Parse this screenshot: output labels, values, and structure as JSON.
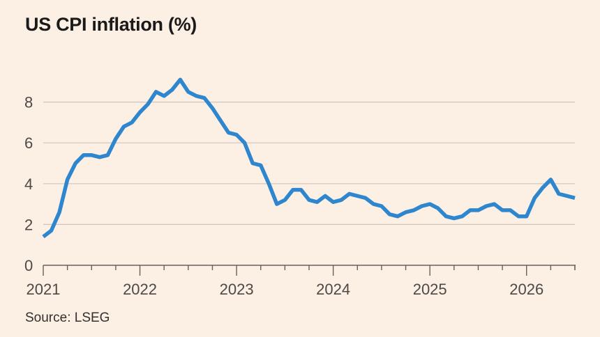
{
  "title": "US CPI inflation (%)",
  "source": "Source: LSEG",
  "colors": {
    "background": "#FCEFE4",
    "line": "#2E86CF",
    "grid": "#CFC5BD",
    "axis": "#66605C",
    "text": "#4d4a46"
  },
  "chart_data": {
    "type": "line",
    "title": "US CPI inflation (%)",
    "xlabel": "",
    "ylabel": "",
    "x_ticks": [
      "2021",
      "2022",
      "2023",
      "2024",
      "2025",
      "2026"
    ],
    "y_ticks": [
      0,
      2,
      4,
      6,
      8
    ],
    "ylim": [
      0,
      9.5
    ],
    "xlim": [
      "2021-01",
      "2026-07"
    ],
    "grid": "horizontal",
    "series": [
      {
        "x": [
          "2021-01",
          "2021-02",
          "2021-03",
          "2021-04",
          "2021-05",
          "2021-06",
          "2021-07",
          "2021-08",
          "2021-09",
          "2021-10",
          "2021-11",
          "2021-12",
          "2022-01",
          "2022-02",
          "2022-03",
          "2022-04",
          "2022-05",
          "2022-06",
          "2022-07",
          "2022-08",
          "2022-09",
          "2022-10",
          "2022-11",
          "2022-12",
          "2023-01",
          "2023-02",
          "2023-03",
          "2023-04",
          "2023-05",
          "2023-06",
          "2023-07",
          "2023-08",
          "2023-09",
          "2023-10",
          "2023-11",
          "2023-12",
          "2024-01",
          "2024-02",
          "2024-03",
          "2024-04",
          "2024-05",
          "2024-06",
          "2024-07",
          "2024-08",
          "2024-09",
          "2024-10",
          "2024-11",
          "2024-12",
          "2025-01",
          "2025-02",
          "2025-03",
          "2025-04",
          "2025-05",
          "2025-06",
          "2025-07",
          "2025-08",
          "2025-09",
          "2025-10",
          "2025-11",
          "2025-12",
          "2026-01",
          "2026-02",
          "2026-03",
          "2026-04",
          "2026-05",
          "2026-06",
          "2026-07"
        ],
        "values": [
          1.4,
          1.7,
          2.6,
          4.2,
          5.0,
          5.4,
          5.4,
          5.3,
          5.4,
          6.2,
          6.8,
          7.0,
          7.5,
          7.9,
          8.5,
          8.3,
          8.6,
          9.1,
          8.5,
          8.3,
          8.2,
          7.7,
          7.1,
          6.5,
          6.4,
          6.0,
          5.0,
          4.9,
          4.0,
          3.0,
          3.2,
          3.7,
          3.7,
          3.2,
          3.1,
          3.4,
          3.1,
          3.2,
          3.5,
          3.4,
          3.3,
          3.0,
          2.9,
          2.5,
          2.4,
          2.6,
          2.7,
          2.9,
          3.0,
          2.8,
          2.4,
          2.3,
          2.4,
          2.7,
          2.7,
          2.9,
          3.0,
          2.7,
          2.7,
          2.4,
          2.4,
          3.3,
          3.8,
          4.2,
          3.5,
          3.4,
          3.3
        ]
      }
    ]
  }
}
